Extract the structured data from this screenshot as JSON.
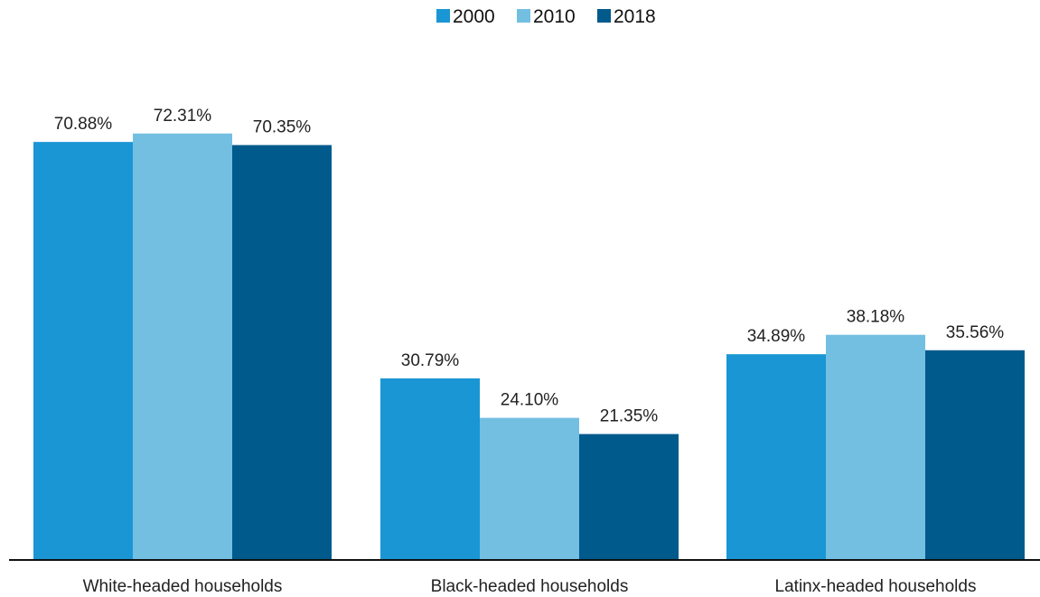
{
  "chart_data": {
    "type": "bar",
    "categories": [
      "White-headed households",
      "Black-headed households",
      "Latinx-headed households"
    ],
    "series": [
      {
        "name": "2000",
        "values": [
          70.88,
          30.79,
          34.89
        ],
        "labels": [
          "70.88%",
          "30.79%",
          "34.89%"
        ],
        "color": "#1a96d4"
      },
      {
        "name": "2010",
        "values": [
          72.31,
          24.1,
          38.18
        ],
        "labels": [
          "72.31%",
          "24.10%",
          "38.18%"
        ],
        "color": "#73bfe2"
      },
      {
        "name": "2018",
        "values": [
          70.35,
          21.35,
          35.56
        ],
        "labels": [
          "70.35%",
          "21.35%",
          "35.56%"
        ],
        "color": "#005a8c"
      }
    ],
    "ylim": [
      0,
      100
    ],
    "grid": false,
    "legend_position": "top-center",
    "axis_color": "#111111"
  }
}
